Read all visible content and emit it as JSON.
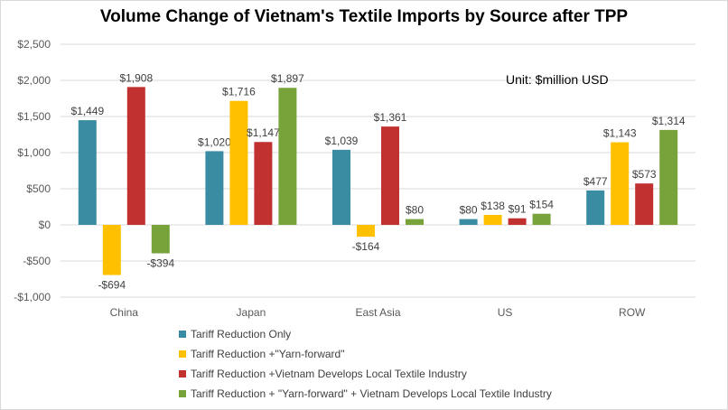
{
  "chart_data": {
    "type": "bar",
    "title": "Volume Change of Vietnam's Textile Imports by Source after TPP",
    "unit_note": "Unit:  $million USD",
    "xlabel": "",
    "ylabel": "",
    "ylim": [
      -1000,
      2500
    ],
    "y_ticks": [
      2500,
      2000,
      1500,
      1000,
      500,
      0,
      -500,
      -1000
    ],
    "y_tick_labels": [
      "$2,500",
      "$2,000",
      "$1,500",
      "$1,000",
      "$500",
      "$0",
      "-$500",
      "-$1,000"
    ],
    "categories": [
      "China",
      "Japan",
      "East Asia",
      "US",
      "ROW"
    ],
    "grid": true,
    "legend_position": "bottom",
    "series": [
      {
        "name": "Tariff Reduction Only",
        "color": "#3a8ca3",
        "values": [
          1449,
          1020,
          1039,
          80,
          477
        ],
        "labels": [
          "$1,449",
          "$1,020",
          "$1,039",
          "$80",
          "$477"
        ]
      },
      {
        "name": "Tariff Reduction +\"Yarn-forward\"",
        "color": "#ffc000",
        "values": [
          -694,
          1716,
          -164,
          138,
          1143
        ],
        "labels": [
          "-$694",
          "$1,716",
          "-$164",
          "$138",
          "$1,143"
        ]
      },
      {
        "name": "Tariff Reduction +Vietnam Develops Local Textile Industry",
        "color": "#c0312f",
        "values": [
          1908,
          1147,
          1361,
          91,
          573
        ],
        "labels": [
          "$1,908",
          "$1,147",
          "$1,361",
          "$91",
          "$573"
        ]
      },
      {
        "name": "Tariff Reduction + \"Yarn-forward\" + Vietnam Develops Local Textile Industry",
        "color": "#77a33a",
        "values": [
          -394,
          1897,
          80,
          154,
          1314
        ],
        "labels": [
          "-$394",
          "$1,897",
          "$80",
          "$154",
          "$1,314"
        ]
      }
    ]
  }
}
